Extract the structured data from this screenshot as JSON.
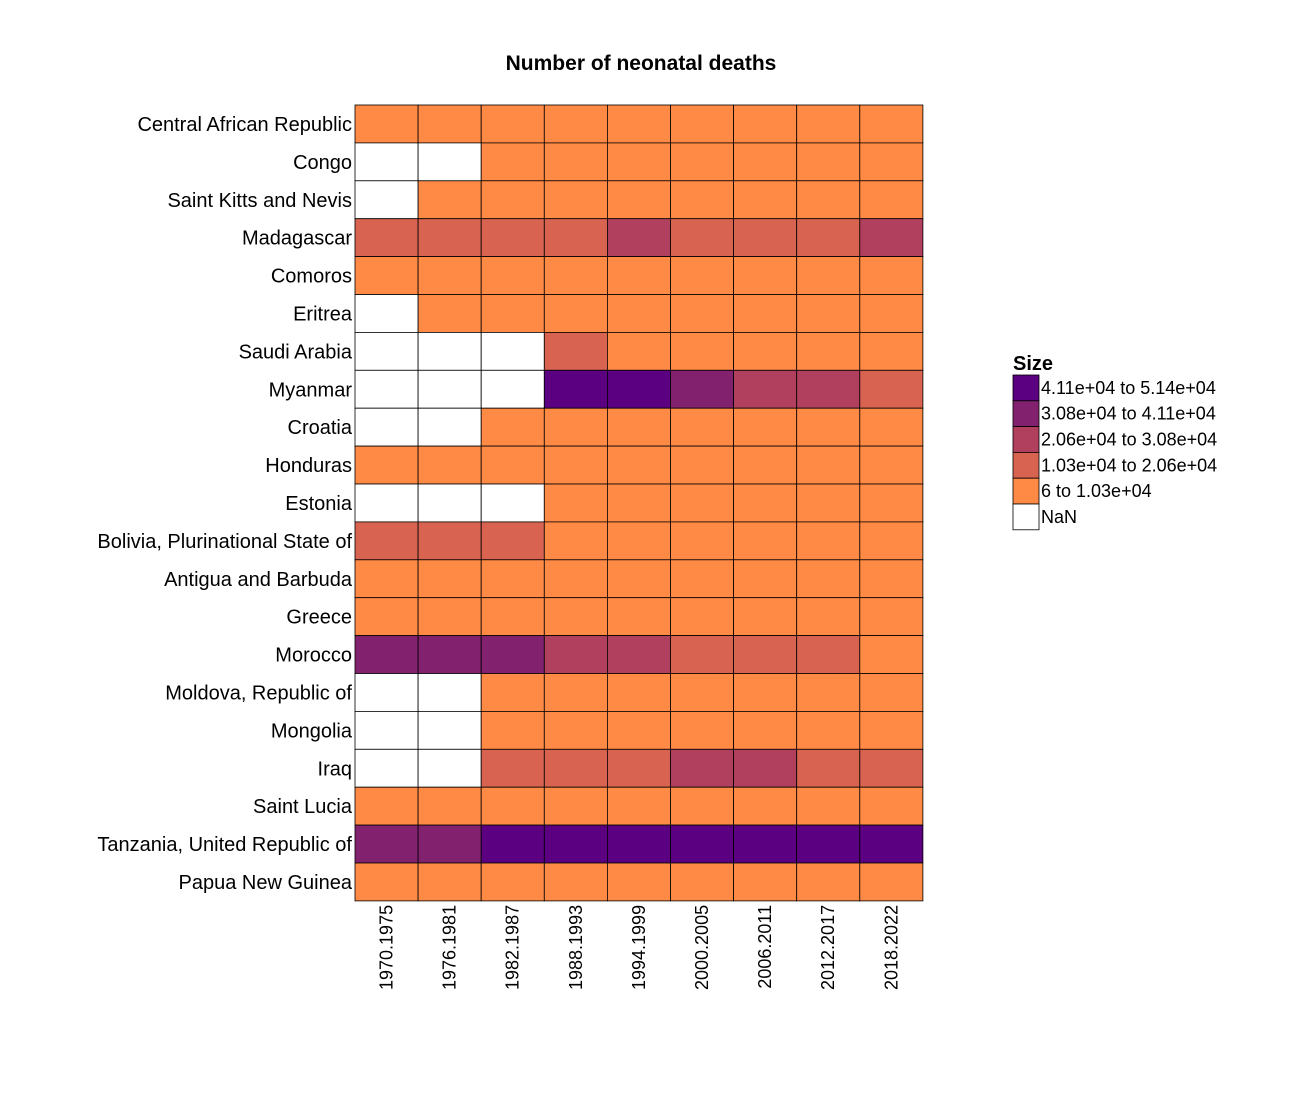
{
  "chart_data": {
    "type": "heatmap",
    "title": "Number of neonatal deaths",
    "xlabel": "",
    "ylabel": "",
    "columns": [
      "1970.1975",
      "1976.1981",
      "1982.1987",
      "1988.1993",
      "1994.1999",
      "2000.2005",
      "2006.2011",
      "2012.2017",
      "2018.2022"
    ],
    "rows": [
      "Central African Republic",
      "Congo",
      "Saint Kitts and Nevis",
      "Madagascar",
      "Comoros",
      "Eritrea",
      "Saudi Arabia",
      "Myanmar",
      "Croatia",
      "Honduras",
      "Estonia",
      "Bolivia, Plurinational State of",
      "Antigua and Barbuda",
      "Greece",
      "Morocco",
      "Moldova, Republic of",
      "Mongolia",
      "Iraq",
      "Saint Lucia",
      "Tanzania, United Republic of",
      "Papua New Guinea"
    ],
    "bins": [
      [
        1,
        1,
        1,
        1,
        1,
        1,
        1,
        1,
        1
      ],
      [
        0,
        0,
        1,
        1,
        1,
        1,
        1,
        1,
        1
      ],
      [
        0,
        1,
        1,
        1,
        1,
        1,
        1,
        1,
        1
      ],
      [
        2,
        2,
        2,
        2,
        3,
        2,
        2,
        2,
        3
      ],
      [
        1,
        1,
        1,
        1,
        1,
        1,
        1,
        1,
        1
      ],
      [
        0,
        1,
        1,
        1,
        1,
        1,
        1,
        1,
        1
      ],
      [
        0,
        0,
        0,
        2,
        1,
        1,
        1,
        1,
        1
      ],
      [
        0,
        0,
        0,
        5,
        5,
        4,
        3,
        3,
        2
      ],
      [
        0,
        0,
        1,
        1,
        1,
        1,
        1,
        1,
        1
      ],
      [
        1,
        1,
        1,
        1,
        1,
        1,
        1,
        1,
        1
      ],
      [
        0,
        0,
        0,
        1,
        1,
        1,
        1,
        1,
        1
      ],
      [
        2,
        2,
        2,
        1,
        1,
        1,
        1,
        1,
        1
      ],
      [
        1,
        1,
        1,
        1,
        1,
        1,
        1,
        1,
        1
      ],
      [
        1,
        1,
        1,
        1,
        1,
        1,
        1,
        1,
        1
      ],
      [
        4,
        4,
        4,
        3,
        3,
        2,
        2,
        2,
        1
      ],
      [
        0,
        0,
        1,
        1,
        1,
        1,
        1,
        1,
        1
      ],
      [
        0,
        0,
        1,
        1,
        1,
        1,
        1,
        1,
        1
      ],
      [
        0,
        0,
        2,
        2,
        2,
        3,
        3,
        2,
        2
      ],
      [
        1,
        1,
        1,
        1,
        1,
        1,
        1,
        1,
        1
      ],
      [
        4,
        4,
        5,
        5,
        5,
        5,
        5,
        5,
        5
      ],
      [
        1,
        1,
        1,
        1,
        1,
        1,
        1,
        1,
        1
      ]
    ],
    "legend": {
      "title": "Size",
      "placement": "right",
      "entries": [
        {
          "bin": 5,
          "label": "4.11e+04 to 5.14e+04",
          "color": "#5b0080"
        },
        {
          "bin": 4,
          "label": "3.08e+04 to 4.11e+04",
          "color": "#82216e"
        },
        {
          "bin": 3,
          "label": "2.06e+04 to 3.08e+04",
          "color": "#b0405e"
        },
        {
          "bin": 2,
          "label": "1.03e+04 to 2.06e+04",
          "color": "#d76350"
        },
        {
          "bin": 1,
          "label": "6 to 1.03e+04",
          "color": "#ff8a45"
        },
        {
          "bin": 0,
          "label": "NaN",
          "color": "#ffffff"
        }
      ]
    },
    "grid": false
  }
}
